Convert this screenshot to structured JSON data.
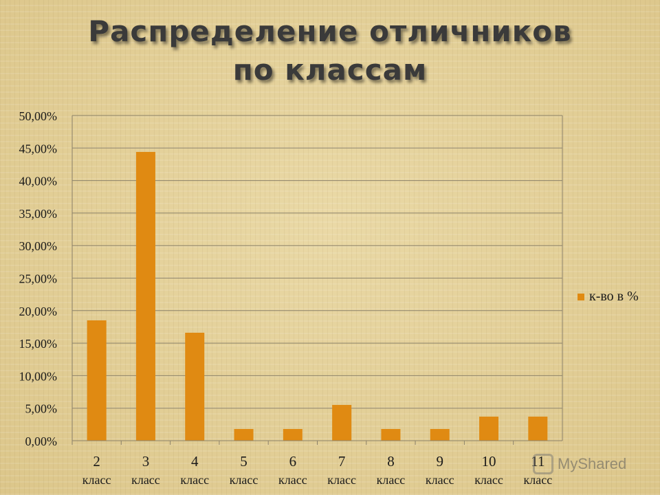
{
  "title_line1": "Распределение отличников",
  "title_line2": "по классам",
  "chart_data": {
    "type": "bar",
    "categories": [
      [
        "2",
        "класс"
      ],
      [
        "3",
        "класс"
      ],
      [
        "4",
        "класс"
      ],
      [
        "5",
        "класс"
      ],
      [
        "6",
        "класс"
      ],
      [
        "7",
        "класс"
      ],
      [
        "8",
        "класс"
      ],
      [
        "9",
        "класс"
      ],
      [
        "10",
        "класс"
      ],
      [
        "11",
        "класс"
      ]
    ],
    "series": [
      {
        "name": "к-во в %",
        "values": [
          18.5,
          44.4,
          16.6,
          1.8,
          1.8,
          5.5,
          1.8,
          1.8,
          3.7,
          3.7
        ]
      }
    ],
    "ylim": [
      0,
      50
    ],
    "yticks": [
      "0,00%",
      "5,00%",
      "10,00%",
      "15,00%",
      "20,00%",
      "25,00%",
      "30,00%",
      "35,00%",
      "40,00%",
      "45,00%",
      "50,00%"
    ],
    "grid": true,
    "legend": "right",
    "bar_color": "#e08a12",
    "xlabel": "",
    "ylabel": ""
  },
  "watermark": "MyShared"
}
